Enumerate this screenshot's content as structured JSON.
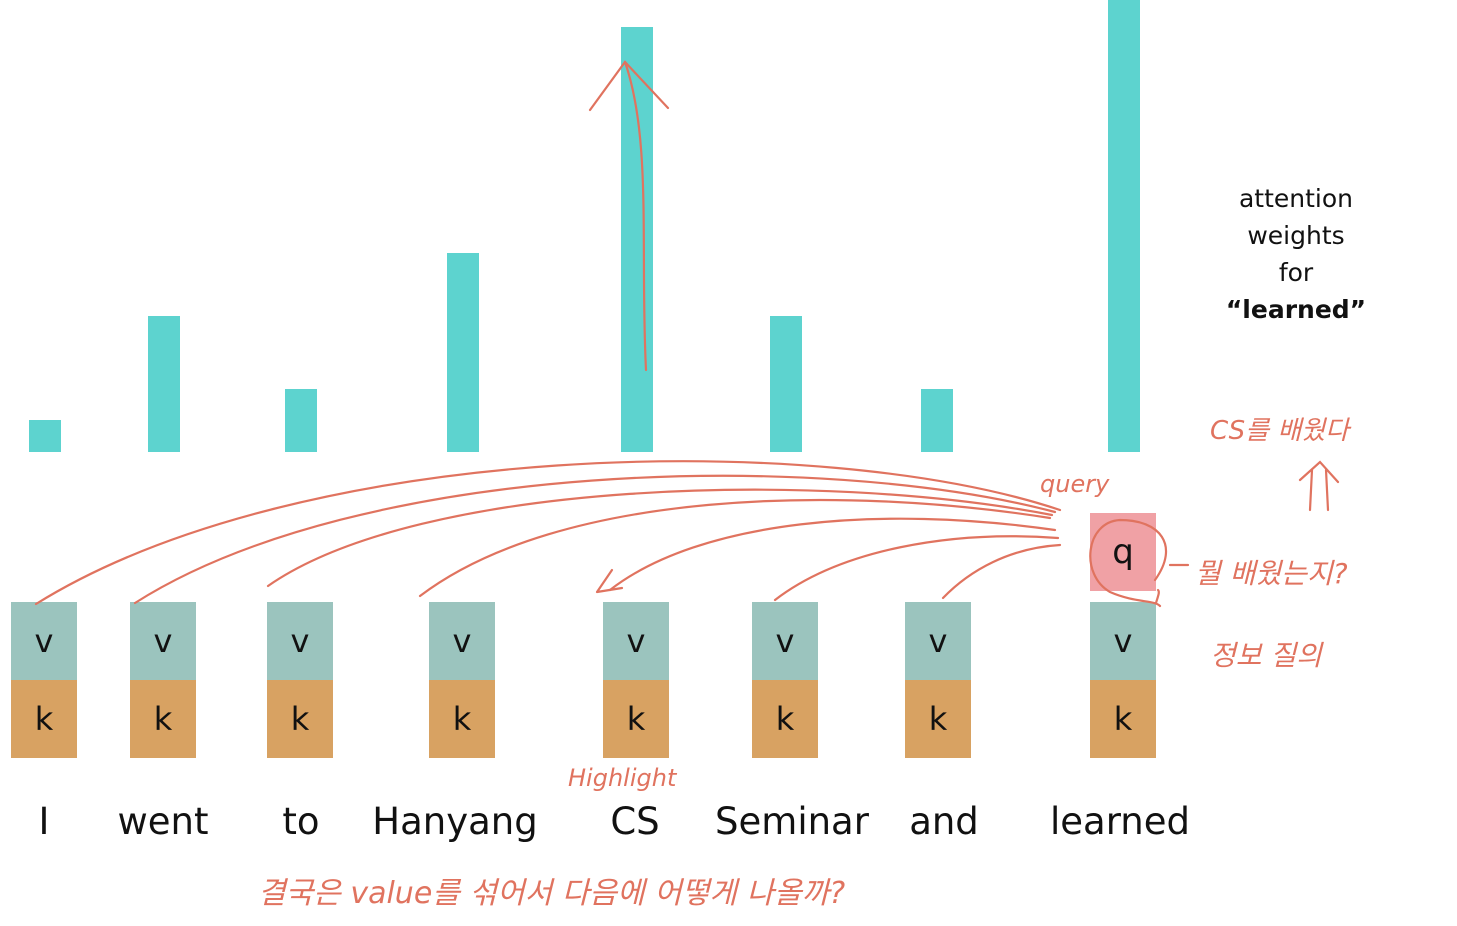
{
  "chart_data": {
    "type": "bar",
    "categories": [
      "I",
      "went",
      "to",
      "Hanyang",
      "CS",
      "Seminar",
      "and",
      "learned"
    ],
    "values": [
      0.07,
      0.3,
      0.14,
      0.44,
      0.94,
      0.3,
      0.14,
      1.0
    ],
    "ylim": [
      0,
      1
    ]
  },
  "legend": {
    "line1": "attention",
    "line2": "weights",
    "line3": "for",
    "line4": "“learned”"
  },
  "tokens": [
    {
      "word": "I",
      "v": "v",
      "k": "k"
    },
    {
      "word": "went",
      "v": "v",
      "k": "k"
    },
    {
      "word": "to",
      "v": "v",
      "k": "k"
    },
    {
      "word": "Hanyang",
      "v": "v",
      "k": "k"
    },
    {
      "word": "CS",
      "v": "v",
      "k": "k"
    },
    {
      "word": "Seminar",
      "v": "v",
      "k": "k"
    },
    {
      "word": "and",
      "v": "v",
      "k": "k"
    },
    {
      "word": "learned",
      "v": "v",
      "k": "k"
    }
  ],
  "query": {
    "label": "q"
  },
  "annotations": {
    "query": "query",
    "highlight": "Highlight",
    "cs_learned": "CS를 배웠다",
    "what_learned": "뭘 배웠는지?",
    "info_question": "정보 질의",
    "bottom": "결국은 value를 섞어서 다음에 어떻게 나올까?"
  },
  "colors": {
    "bar": "#5dd3cf",
    "value_box": "#9bc4be",
    "key_box": "#d8a262",
    "query_box": "#f0a1a5",
    "ink": "#e0735f"
  }
}
